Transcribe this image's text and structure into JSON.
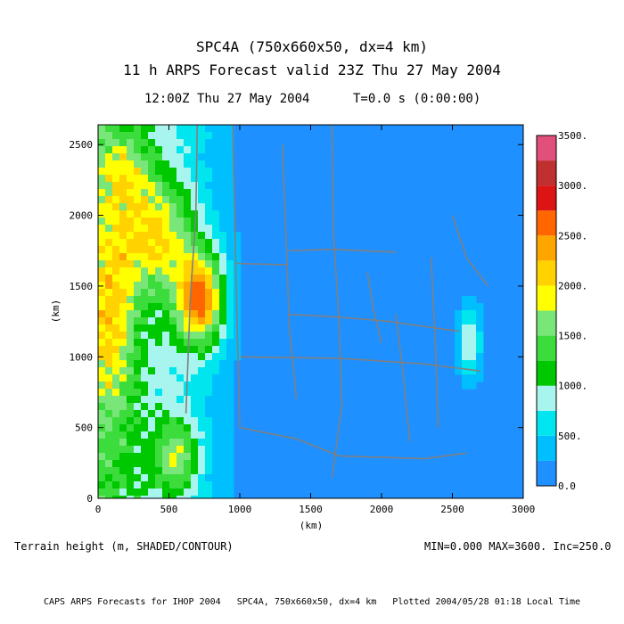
{
  "header": {
    "title": "SPC4A (750x660x50, dx=4 km)",
    "subtitle": "11 h ARPS Forecast valid 23Z Thu 27 May 2004",
    "time_left": "12:00Z Thu 27 May 2004",
    "time_right": "T=0.0 s (0:00:00)"
  },
  "footer": {
    "left": "Terrain height (m, SHADED/CONTOUR)",
    "right": "MIN=0.000 MAX=3600. Inc=250.0",
    "credit": "CAPS ARPS Forecasts for IHOP 2004   SPC4A, 750x660x50, dx=4 km   Plotted 2004/05/28 01:18 Local Time"
  },
  "colors": {
    "boundary": "#808080",
    "contour": "#000000",
    "levels": [
      "#1e90ff",
      "#00bfff",
      "#00e5ee",
      "#a8f5f0",
      "#00c800",
      "#3cdc3c",
      "#78e678",
      "#ffff00",
      "#ffd200",
      "#ffa500",
      "#ff6600",
      "#dc1414",
      "#c03030",
      "#e0507a"
    ]
  },
  "chart_data": {
    "type": "heatmap",
    "title": "SPC4A (750x660x50, dx=4 km)",
    "xlabel": "(km)",
    "ylabel": "(km)",
    "xlim": [
      0,
      3000
    ],
    "ylim": [
      0,
      2640
    ],
    "x_ticks": [
      "0",
      "500",
      "1000",
      "1500",
      "2000",
      "2500",
      "3000"
    ],
    "y_ticks": [
      "0",
      "500",
      "1000",
      "1500",
      "2000",
      "2500"
    ],
    "variable": "Terrain height (m)",
    "min": 0.0,
    "max": 3600.0,
    "increment": 250.0,
    "colorbar_labels": [
      "0.0",
      "500.",
      "1000.",
      "1500.",
      "2000.",
      "2500.",
      "3000.",
      "3500."
    ],
    "colorbar_levels": [
      0,
      250,
      500,
      750,
      1000,
      1250,
      1500,
      1750,
      2000,
      2250,
      2500,
      2750,
      3000,
      3250,
      3500
    ],
    "legend": "right"
  }
}
